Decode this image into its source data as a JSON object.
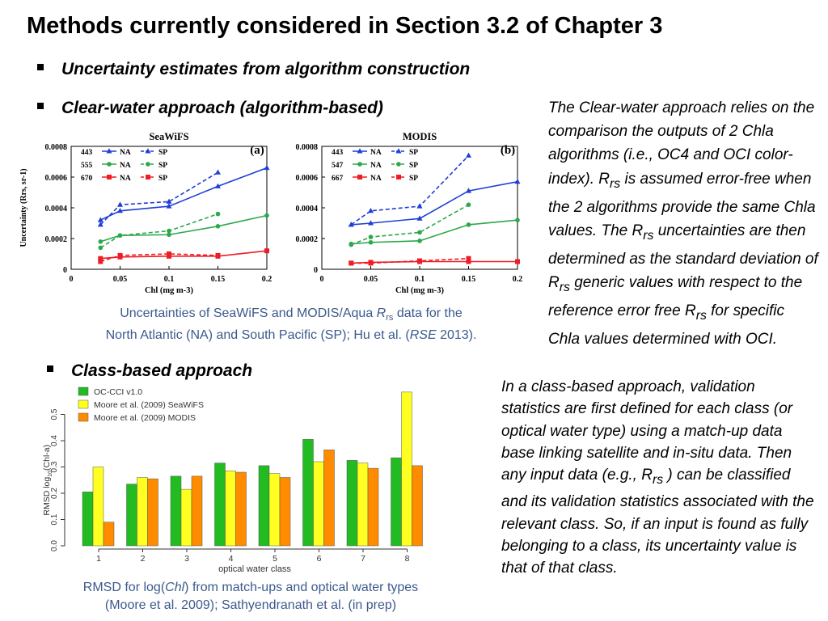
{
  "slide": {
    "title": "Methods currently considered in Section 3.2 of Chapter 3",
    "bullet1": "Uncertainty estimates from algorithm construction",
    "bullet2": "Clear-water approach (algorithm-based)",
    "bullet3": "Class-based approach"
  },
  "note1": {
    "pre": "The Clear-water approach relies on the comparison the outputs of 2 Chla algorithms (i.e., OC4 and OCI color-index). R",
    "sub1": "rs",
    "mid1": " is assumed error-free when the 2 algorithms provide the same Chla values. The R",
    "sub2": "rs",
    "mid2": " uncertainties are then determined as the standard deviation of R",
    "sub3": "rs",
    "mid3": " generic values with respect to the reference error free R",
    "sub4": "rs",
    "post": " for specific Chla values determined with OCI."
  },
  "note2": {
    "pre": "In a class-based approach, validation statistics are first defined for each class (or optical water type) using a match-up data base linking satellite and in-situ data. Then any input data (e.g., R",
    "sub": "rs",
    "post": " ) can be classified and its validation statistics associated with the relevant class. So, if an input is found as fully belonging to a class, its uncertainty value is that of that class."
  },
  "caption1": {
    "line1a": "Uncertainties of SeaWiFS and MODIS/Aqua ",
    "R": "R",
    "rs": "rs",
    "line1b": "  data for the",
    "line2a": "North Atlantic (NA) and South Pacific (SP); Hu et al. (",
    "rse": "RSE",
    "line2b": " 2013)."
  },
  "caption2": {
    "line1a": "RMSD for log(",
    "chl": "Chl",
    "line1b": ") from match-ups and optical water types",
    "line2": "(Moore et al. 2009); Sathyendranath et al. (in prep)"
  },
  "colors": {
    "blue": "#1f3fd6",
    "green": "#2aa84a",
    "red": "#ee1c25",
    "bar_green": "#22bb22",
    "bar_yellow": "#ffff22",
    "bar_orange": "#ff8c00",
    "caption": "#3a5a8c"
  },
  "chart_data": [
    {
      "type": "line",
      "title": "SeaWiFS",
      "panel": "(a)",
      "xlabel": "Chl (mg m-3)",
      "ylabel": "Uncertainty (Rrs, sr-1)",
      "xlim": [
        0,
        0.2
      ],
      "ylim": [
        0,
        0.0008
      ],
      "xticks": [
        "0",
        "0.05",
        "0.1",
        "0.15",
        "0.2"
      ],
      "yticks": [
        "0",
        "0.0002",
        "0.0004",
        "0.0006",
        "0.0008"
      ],
      "legend_wavelengths": [
        "443",
        "555",
        "670"
      ],
      "series": [
        {
          "name": "NA",
          "wavelength": "443",
          "color": "blue",
          "marker": "triangle",
          "dash": false,
          "x": [
            0.03,
            0.05,
            0.1,
            0.15,
            0.2
          ],
          "y": [
            0.00032,
            0.00038,
            0.00041,
            0.00054,
            0.00066
          ]
        },
        {
          "name": "SP",
          "wavelength": "443",
          "color": "blue",
          "marker": "triangle",
          "dash": true,
          "x": [
            0.03,
            0.05,
            0.1,
            0.15
          ],
          "y": [
            0.00029,
            0.00042,
            0.00044,
            0.00063
          ]
        },
        {
          "name": "NA",
          "wavelength": "555",
          "color": "green",
          "marker": "circle",
          "dash": false,
          "x": [
            0.03,
            0.05,
            0.1,
            0.15,
            0.2
          ],
          "y": [
            0.00018,
            0.00022,
            0.000225,
            0.00028,
            0.00035
          ]
        },
        {
          "name": "SP",
          "wavelength": "555",
          "color": "green",
          "marker": "circle",
          "dash": true,
          "x": [
            0.03,
            0.05,
            0.1,
            0.15
          ],
          "y": [
            0.00014,
            0.00022,
            0.00025,
            0.00036
          ]
        },
        {
          "name": "NA",
          "wavelength": "670",
          "color": "red",
          "marker": "square",
          "dash": false,
          "x": [
            0.03,
            0.05,
            0.1,
            0.15,
            0.2
          ],
          "y": [
            7e-05,
            8e-05,
            8.5e-05,
            8.5e-05,
            0.00012
          ]
        },
        {
          "name": "SP",
          "wavelength": "670",
          "color": "red",
          "marker": "square",
          "dash": true,
          "x": [
            0.03,
            0.05,
            0.1,
            0.15
          ],
          "y": [
            5e-05,
            9e-05,
            0.0001,
            9e-05
          ]
        }
      ]
    },
    {
      "type": "line",
      "title": "MODIS",
      "panel": "(b)",
      "xlabel": "Chl (mg m-3)",
      "ylabel": "",
      "xlim": [
        0,
        0.2
      ],
      "ylim": [
        0,
        0.0008
      ],
      "xticks": [
        "0",
        "0.05",
        "0.1",
        "0.15",
        "0.2"
      ],
      "yticks": [
        "0",
        "0.0002",
        "0.0004",
        "0.0006",
        "0.0008"
      ],
      "legend_wavelengths": [
        "443",
        "547",
        "667"
      ],
      "series": [
        {
          "name": "NA",
          "wavelength": "443",
          "color": "blue",
          "marker": "triangle",
          "dash": false,
          "x": [
            0.03,
            0.05,
            0.1,
            0.15,
            0.2
          ],
          "y": [
            0.00029,
            0.0003,
            0.00033,
            0.00051,
            0.00057
          ]
        },
        {
          "name": "SP",
          "wavelength": "443",
          "color": "blue",
          "marker": "triangle",
          "dash": true,
          "x": [
            0.03,
            0.05,
            0.1,
            0.15
          ],
          "y": [
            0.00029,
            0.00038,
            0.00041,
            0.00074
          ]
        },
        {
          "name": "NA",
          "wavelength": "547",
          "color": "green",
          "marker": "circle",
          "dash": false,
          "x": [
            0.03,
            0.05,
            0.1,
            0.15,
            0.2
          ],
          "y": [
            0.000165,
            0.000175,
            0.000185,
            0.00029,
            0.00032
          ]
        },
        {
          "name": "SP",
          "wavelength": "547",
          "color": "green",
          "marker": "circle",
          "dash": true,
          "x": [
            0.03,
            0.05,
            0.1,
            0.15
          ],
          "y": [
            0.00016,
            0.00021,
            0.00024,
            0.00042
          ]
        },
        {
          "name": "NA",
          "wavelength": "667",
          "color": "red",
          "marker": "square",
          "dash": false,
          "x": [
            0.03,
            0.05,
            0.1,
            0.15,
            0.2
          ],
          "y": [
            4e-05,
            4.5e-05,
            5e-05,
            5e-05,
            5e-05
          ]
        },
        {
          "name": "SP",
          "wavelength": "667",
          "color": "red",
          "marker": "square",
          "dash": true,
          "x": [
            0.03,
            0.05,
            0.1,
            0.15
          ],
          "y": [
            4e-05,
            4e-05,
            5.5e-05,
            7e-05
          ]
        }
      ]
    },
    {
      "type": "bar",
      "xlabel": "optical water class",
      "ylabel_pre": "RMSD log",
      "ylabel_sub": "10",
      "ylabel_post": "(Chl-a)",
      "ylim": [
        0,
        0.6
      ],
      "yticks": [
        "0.0",
        "0.1",
        "0.2",
        "0.3",
        "0.4",
        "0.5"
      ],
      "categories": [
        "1",
        "2",
        "3",
        "4",
        "5",
        "6",
        "7",
        "8"
      ],
      "series": [
        {
          "name": "OC-CCI v1.0",
          "color": "bar_green",
          "values": [
            0.205,
            0.235,
            0.265,
            0.315,
            0.305,
            0.405,
            0.325,
            0.335
          ]
        },
        {
          "name": "Moore et al. (2009) SeaWiFS",
          "color": "bar_yellow",
          "values": [
            0.3,
            0.26,
            0.215,
            0.285,
            0.275,
            0.32,
            0.315,
            0.585
          ]
        },
        {
          "name": "Moore et al. (2009) MODIS",
          "color": "bar_orange",
          "values": [
            0.09,
            0.255,
            0.265,
            0.28,
            0.26,
            0.365,
            0.295,
            0.305
          ]
        }
      ]
    }
  ]
}
